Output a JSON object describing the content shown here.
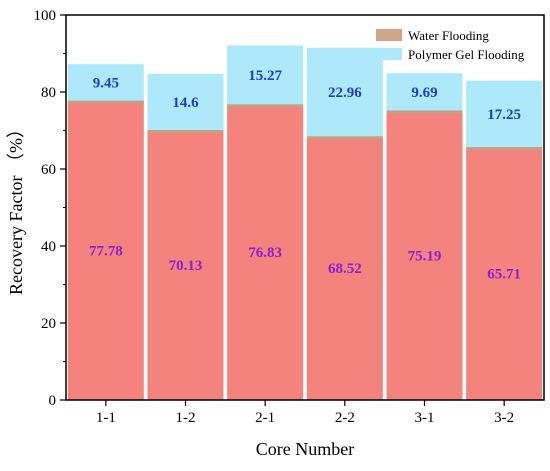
{
  "chart_data": {
    "type": "bar",
    "stacked": true,
    "categories": [
      "1-1",
      "1-2",
      "2-1",
      "2-2",
      "3-1",
      "3-2"
    ],
    "series": [
      {
        "name": "Water Flooding",
        "values": [
          77.78,
          70.13,
          76.83,
          68.52,
          75.19,
          65.71
        ],
        "color": "#f4837d"
      },
      {
        "name": "Polymer Gel Flooding",
        "values": [
          9.45,
          14.6,
          15.27,
          22.96,
          9.69,
          17.25
        ],
        "color": "#aee8fb"
      }
    ],
    "xlabel": "Core Number",
    "ylabel": "Recovery Factor （%）",
    "ylim": [
      0,
      100
    ],
    "yticks": [
      0,
      20,
      40,
      60,
      80,
      100
    ],
    "grid": false,
    "legend_position": "top-right",
    "label_colors": {
      "water": "#8a1fd6",
      "polymer": "#1f3fbf"
    },
    "water_accent_color": "#b9a884"
  }
}
